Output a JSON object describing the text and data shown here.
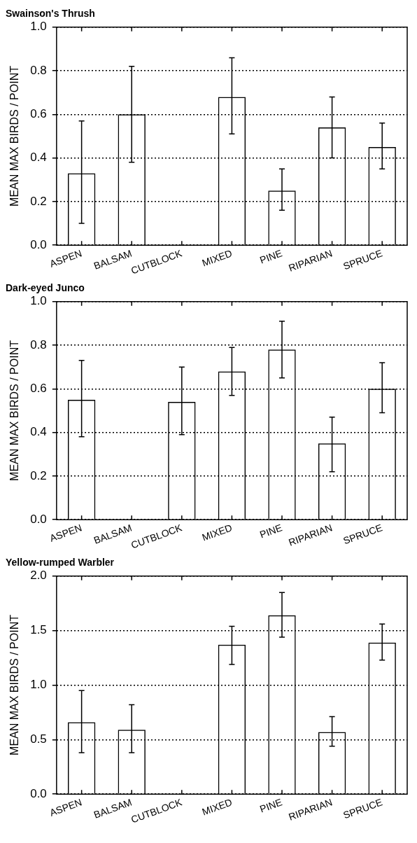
{
  "chart_data": [
    {
      "type": "bar",
      "title": "Swainson's Thrush",
      "ylabel": "MEAN MAX BIRDS / POINT",
      "categories": [
        "ASPEN",
        "BALSAM",
        "CUTBLOCK",
        "MIXED",
        "PINE",
        "RIPARIAN",
        "SPRUCE"
      ],
      "values": [
        0.33,
        0.6,
        null,
        0.68,
        0.25,
        0.54,
        0.45
      ],
      "errors": [
        [
          0.1,
          0.57
        ],
        [
          0.38,
          0.82
        ],
        null,
        [
          0.51,
          0.86
        ],
        [
          0.16,
          0.35
        ],
        [
          0.4,
          0.68
        ],
        [
          0.35,
          0.56
        ]
      ],
      "color": "#000000",
      "ylim": [
        0,
        1.0
      ],
      "yticks": [
        {
          "value": 0,
          "label": "0.0"
        },
        0.2,
        0.4,
        0.6,
        0.8,
        {
          "value": 1,
          "label": "1.0"
        }
      ],
      "grid": "y",
      "legend": false
    },
    {
      "type": "bar",
      "title": "Dark-eyed Junco",
      "ylabel": "MEAN MAX BIRDS / POINT",
      "categories": [
        "ASPEN",
        "BALSAM",
        "CUTBLOCK",
        "MIXED",
        "PINE",
        "RIPARIAN",
        "SPRUCE"
      ],
      "values": [
        0.55,
        null,
        0.54,
        0.68,
        0.78,
        0.35,
        0.6
      ],
      "errors": [
        [
          0.38,
          0.73
        ],
        null,
        [
          0.39,
          0.7
        ],
        [
          0.57,
          0.79
        ],
        [
          0.65,
          0.91
        ],
        [
          0.22,
          0.47
        ],
        [
          0.49,
          0.72
        ]
      ],
      "color": "#000000",
      "ylim": [
        0,
        1.0
      ],
      "yticks": [
        {
          "value": 0,
          "label": "0.0"
        },
        0.2,
        0.4,
        0.6,
        0.8,
        {
          "value": 1,
          "label": "1.0"
        }
      ],
      "grid": "y",
      "legend": false
    },
    {
      "type": "bar",
      "title": "Yellow-rumped Warbler",
      "ylabel": "MEAN MAX BIRDS / POINT",
      "categories": [
        "ASPEN",
        "BALSAM",
        "CUTBLOCK",
        "MIXED",
        "PINE",
        "RIPARIAN",
        "SPRUCE"
      ],
      "values": [
        0.66,
        0.59,
        null,
        1.37,
        1.64,
        0.57,
        1.39
      ],
      "errors": [
        [
          0.38,
          0.95
        ],
        [
          0.38,
          0.82
        ],
        null,
        [
          1.19,
          1.54
        ],
        [
          1.44,
          1.85
        ],
        [
          0.44,
          0.71
        ],
        [
          1.23,
          1.56
        ]
      ],
      "color": "#000000",
      "ylim": [
        0,
        2.0
      ],
      "yticks": [
        {
          "value": 0,
          "label": "0.0"
        },
        0.5,
        {
          "value": 1,
          "label": "1.0"
        },
        1.5,
        {
          "value": 2,
          "label": "2.0"
        }
      ],
      "grid": "y",
      "legend": false
    }
  ]
}
